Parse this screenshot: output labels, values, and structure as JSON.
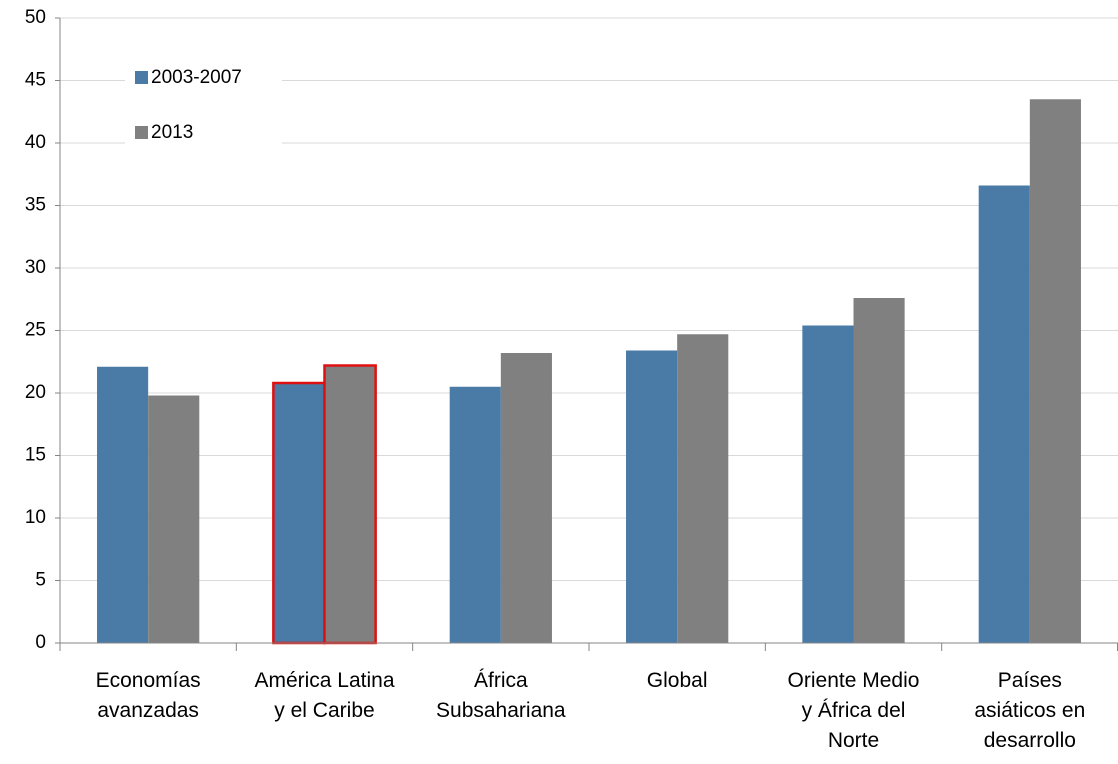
{
  "chart_data": {
    "type": "bar",
    "categories": [
      "Economías\navanzadas",
      "América Latina\ny el Caribe",
      "África\nSubsahariana",
      "Global",
      "Oriente Medio\ny África del\nNorte",
      "Países\nasiáticos en\ndesarrollo"
    ],
    "series": [
      {
        "name": "2003-2007",
        "color": "#4a7aa6",
        "values": [
          22.1,
          20.8,
          20.5,
          23.4,
          25.4,
          36.6
        ]
      },
      {
        "name": "2013",
        "color": "#808080",
        "values": [
          19.8,
          22.2,
          23.2,
          24.7,
          27.6,
          43.5
        ]
      }
    ],
    "ylim": [
      0,
      50
    ],
    "yticks": [
      0,
      5,
      10,
      15,
      20,
      25,
      30,
      35,
      40,
      45,
      50
    ],
    "grid": true,
    "legend": "upper-left",
    "highlight_category": 1,
    "highlight_color": "#e01010"
  }
}
